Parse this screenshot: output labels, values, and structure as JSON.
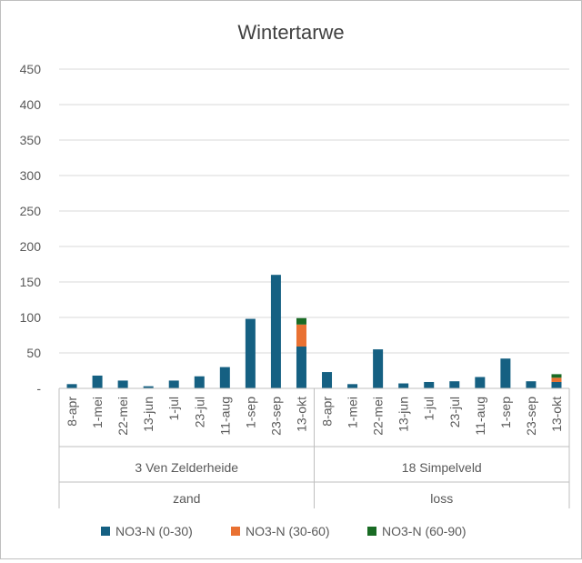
{
  "chart_data": {
    "type": "bar",
    "stacked": true,
    "title": "Wintertarwe",
    "xlabel": "",
    "ylabel": "",
    "ylim": [
      0,
      450
    ],
    "yticks": [
      "-",
      "50",
      "100",
      "150",
      "200",
      "250",
      "300",
      "350",
      "400",
      "450"
    ],
    "grid": true,
    "legend_position": "bottom",
    "groups": [
      {
        "site": "3 Ven Zelderheide",
        "soil": "zand",
        "categories": [
          "8-apr",
          "1-mei",
          "22-mei",
          "13-jun",
          "1-jul",
          "23-jul",
          "11-aug",
          "1-sep",
          "23-sep",
          "13-okt"
        ],
        "series": [
          {
            "name": "NO3-N (0-30)",
            "values": [
              6,
              18,
              11,
              3,
              11,
              17,
              30,
              98,
              160,
              59
            ]
          },
          {
            "name": "NO3-N (30-60)",
            "values": [
              0,
              0,
              0,
              0,
              0,
              0,
              0,
              0,
              0,
              31
            ]
          },
          {
            "name": "NO3-N (60-90)",
            "values": [
              0,
              0,
              0,
              0,
              0,
              0,
              0,
              0,
              0,
              9
            ]
          }
        ]
      },
      {
        "site": "18 Simpelveld",
        "soil": "loss",
        "categories": [
          "8-apr",
          "1-mei",
          "22-mei",
          "13-jun",
          "1-jul",
          "23-jul",
          "11-aug",
          "1-sep",
          "23-sep",
          "13-okt"
        ],
        "series": [
          {
            "name": "NO3-N (0-30)",
            "values": [
              23,
              6,
              55,
              7,
              9,
              10,
              16,
              42,
              10,
              9
            ]
          },
          {
            "name": "NO3-N (30-60)",
            "values": [
              0,
              0,
              0,
              0,
              0,
              0,
              0,
              0,
              0,
              6
            ]
          },
          {
            "name": "NO3-N (60-90)",
            "values": [
              0,
              0,
              0,
              0,
              0,
              0,
              0,
              0,
              0,
              5
            ]
          }
        ]
      }
    ],
    "legend": [
      "NO3-N (0-30)",
      "NO3-N (30-60)",
      "NO3-N (60-90)"
    ],
    "colors": [
      "#156082",
      "#E97132",
      "#196B24"
    ]
  }
}
